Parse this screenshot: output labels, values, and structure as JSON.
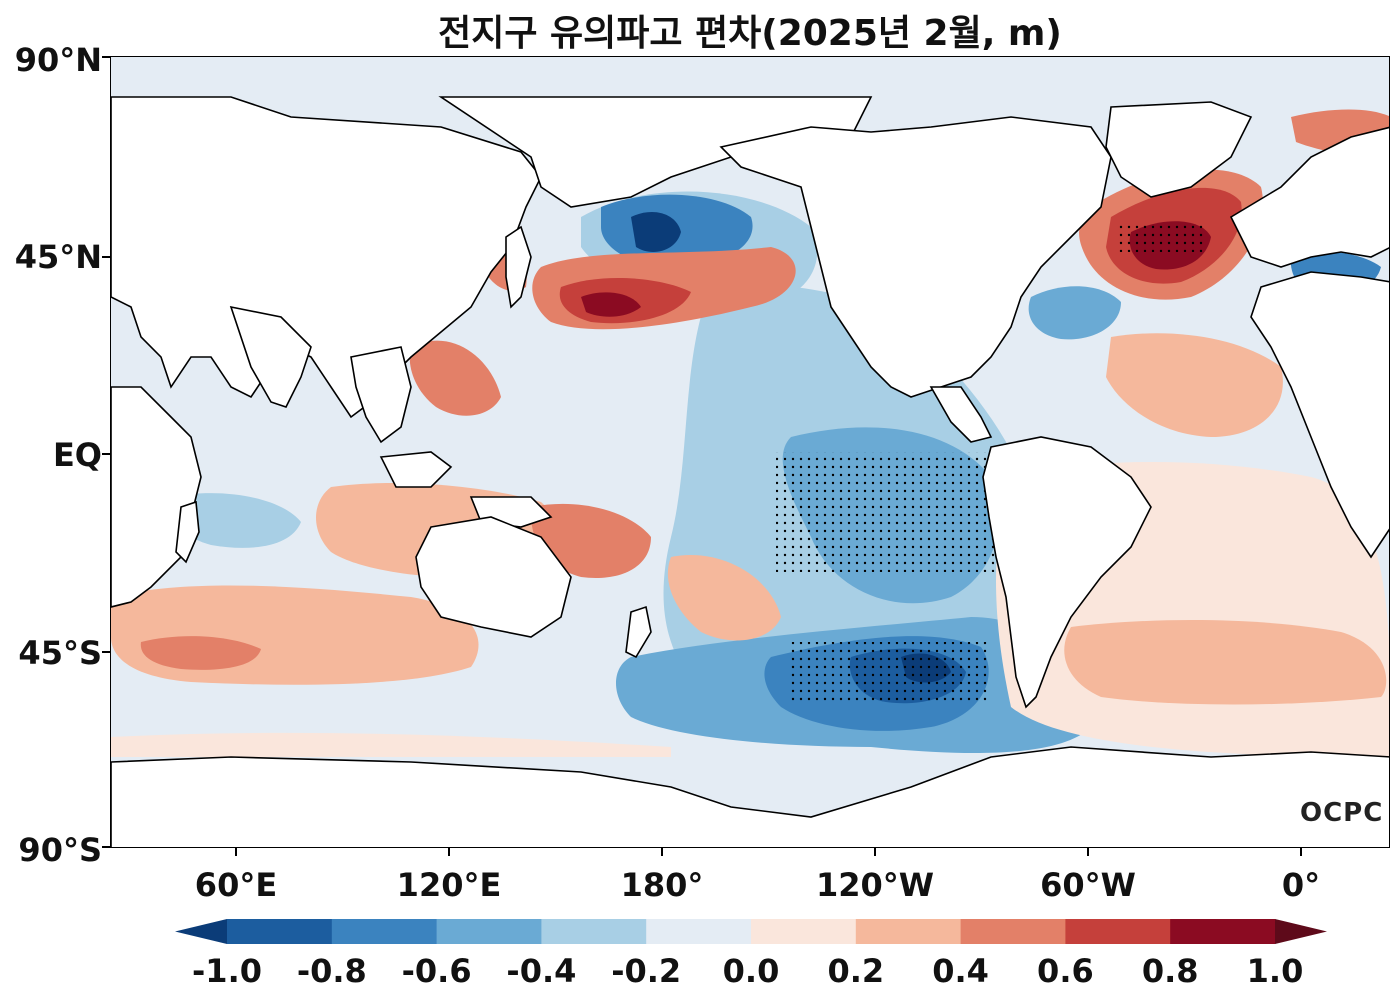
{
  "title": "전지구 유의파고 편차(2025년 2월, m)",
  "lat_labels": [
    "90°N",
    "45°N",
    "EQ",
    "45°S",
    "90°S"
  ],
  "lon_labels": [
    "60°E",
    "120°E",
    "180°",
    "120°W",
    "60°W",
    "0°"
  ],
  "colorbar": {
    "ticks": [
      "-1.0",
      "-0.8",
      "-0.6",
      "-0.4",
      "-0.2",
      "0.0",
      "0.2",
      "0.4",
      "0.6",
      "0.8",
      "1.0"
    ],
    "colors": [
      "#0b3c78",
      "#1c5d9f",
      "#3b83bf",
      "#6aaad4",
      "#a8cfe5",
      "#e4ecf4",
      "#fae6dc",
      "#f5b89c",
      "#e38068",
      "#c5403b",
      "#8b0b22",
      "#5e0a1a"
    ],
    "extend": "both"
  },
  "logo_text": "OCPC"
}
